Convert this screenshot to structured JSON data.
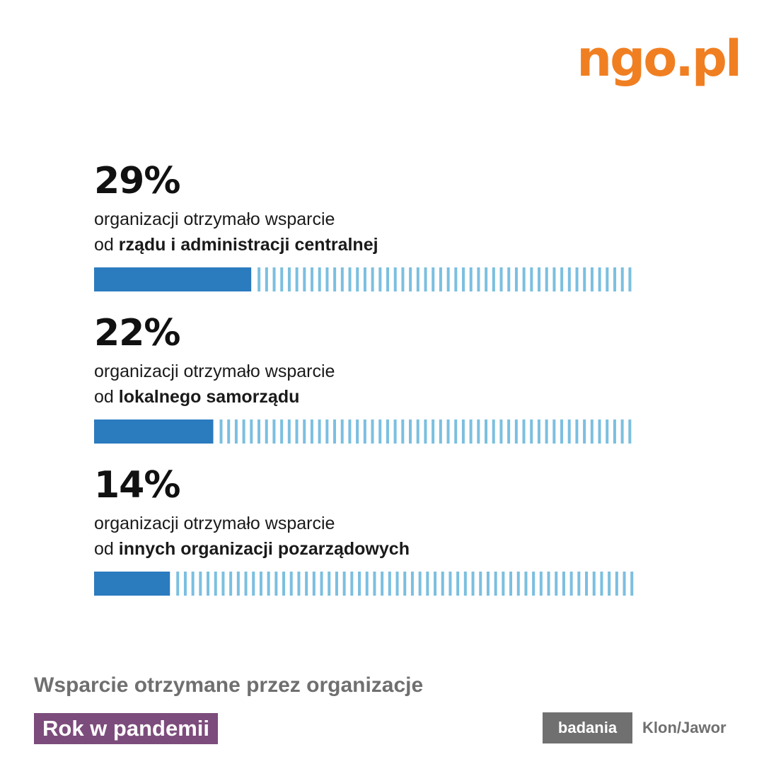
{
  "logo": {
    "text": "ngo.pl",
    "color": "#f07f22"
  },
  "colors": {
    "filled": "#2b7bbf",
    "empty": "#7bbfe0"
  },
  "chart_data": {
    "type": "bar",
    "orientation": "horizontal",
    "ylim": [
      0,
      100
    ],
    "items": [
      {
        "value": 29,
        "label": "29%",
        "line1": "organizacji otrzymało wsparcie",
        "prefix": "od ",
        "bold": "rządu i administracji centralnej"
      },
      {
        "value": 22,
        "label": "22%",
        "line1": "organizacji otrzymało wsparcie",
        "prefix": "od ",
        "bold": "lokalnego samorządu"
      },
      {
        "value": 14,
        "label": "14%",
        "line1": "organizacji otrzymało  wsparcie",
        "prefix": "od ",
        "bold": "innych organizacji pozarządowych"
      }
    ]
  },
  "footer": {
    "title": "Wsparcie otrzymane przez organizacje",
    "series": "Rok w pandemii",
    "tag": "badania",
    "source": "Klon/Jawor"
  }
}
